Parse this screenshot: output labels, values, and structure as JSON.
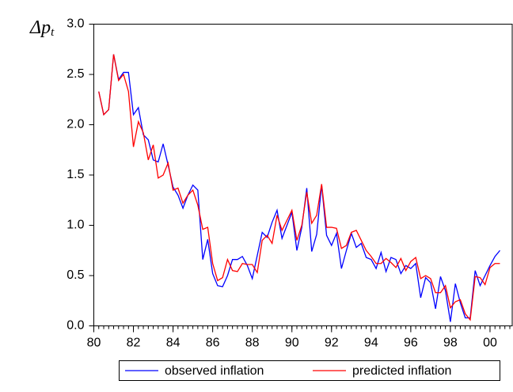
{
  "chart_data": {
    "type": "line",
    "ylabel": {
      "main": "Δp",
      "subscript": "t"
    },
    "x": [
      80.25,
      80.5,
      80.75,
      81,
      81.25,
      81.5,
      81.75,
      82,
      82.25,
      82.5,
      82.75,
      83,
      83.25,
      83.5,
      83.75,
      84,
      84.25,
      84.5,
      84.75,
      85,
      85.25,
      85.5,
      85.75,
      86,
      86.25,
      86.5,
      86.75,
      87,
      87.25,
      87.5,
      87.75,
      88,
      88.25,
      88.5,
      88.75,
      89,
      89.25,
      89.5,
      89.75,
      90,
      90.25,
      90.5,
      90.75,
      91,
      91.25,
      91.5,
      91.75,
      92,
      92.25,
      92.5,
      92.75,
      93,
      93.25,
      93.5,
      93.75,
      94,
      94.25,
      94.5,
      94.75,
      95,
      95.25,
      95.5,
      95.75,
      96,
      96.25,
      96.5,
      96.75,
      97,
      97.25,
      97.5,
      97.75,
      98,
      98.25,
      98.5,
      98.75,
      99,
      99.25,
      99.5,
      99.75,
      100,
      100.25,
      100.5
    ],
    "series": [
      {
        "name": "observed inflation",
        "color": "#0000ff",
        "values": [
          2.33,
          2.1,
          2.15,
          2.7,
          2.45,
          2.52,
          2.52,
          2.1,
          2.17,
          1.9,
          1.85,
          1.65,
          1.63,
          1.81,
          1.6,
          1.38,
          1.3,
          1.17,
          1.3,
          1.4,
          1.35,
          0.66,
          0.86,
          0.52,
          0.4,
          0.39,
          0.5,
          0.66,
          0.66,
          0.69,
          0.6,
          0.47,
          0.7,
          0.93,
          0.88,
          1.03,
          1.15,
          0.87,
          1.0,
          1.13,
          0.75,
          0.98,
          1.37,
          0.74,
          0.91,
          1.4,
          0.9,
          0.8,
          0.92,
          0.57,
          0.75,
          0.92,
          0.78,
          0.82,
          0.68,
          0.66,
          0.57,
          0.73,
          0.54,
          0.68,
          0.66,
          0.52,
          0.6,
          0.57,
          0.62,
          0.28,
          0.48,
          0.43,
          0.17,
          0.49,
          0.35,
          0.04,
          0.42,
          0.23,
          0.08,
          0.08,
          0.55,
          0.4,
          0.5,
          0.6,
          0.69,
          0.75
        ]
      },
      {
        "name": "predicted inflation",
        "color": "#ff0000",
        "values": [
          2.33,
          2.1,
          2.15,
          2.7,
          2.44,
          2.5,
          2.33,
          1.78,
          2.03,
          1.92,
          1.65,
          1.8,
          1.47,
          1.5,
          1.62,
          1.35,
          1.37,
          1.22,
          1.3,
          1.35,
          1.2,
          0.96,
          0.98,
          0.62,
          0.45,
          0.48,
          0.66,
          0.55,
          0.54,
          0.62,
          0.61,
          0.61,
          0.53,
          0.85,
          0.9,
          0.82,
          1.1,
          0.95,
          1.05,
          1.15,
          0.85,
          1.0,
          1.33,
          1.02,
          1.1,
          1.41,
          0.98,
          0.98,
          0.97,
          0.77,
          0.8,
          0.93,
          0.95,
          0.85,
          0.75,
          0.69,
          0.62,
          0.62,
          0.67,
          0.63,
          0.58,
          0.67,
          0.55,
          0.64,
          0.68,
          0.47,
          0.5,
          0.47,
          0.33,
          0.33,
          0.4,
          0.18,
          0.24,
          0.26,
          0.12,
          0.06,
          0.49,
          0.48,
          0.41,
          0.58,
          0.62,
          0.62
        ]
      }
    ],
    "xlim": [
      80,
      101.12
    ],
    "xticks": [
      80,
      82,
      84,
      86,
      88,
      90,
      92,
      94,
      96,
      98,
      {
        "value": 100,
        "label": "00"
      }
    ],
    "ylim": [
      0,
      3
    ],
    "yticks": [
      {
        "value": 0,
        "label": "0.0"
      },
      0.5,
      {
        "value": 1,
        "label": "1.0"
      },
      1.5,
      {
        "value": 2,
        "label": "2.0"
      },
      2.5,
      {
        "value": 3,
        "label": "3.0"
      }
    ],
    "legend": "bottom"
  }
}
